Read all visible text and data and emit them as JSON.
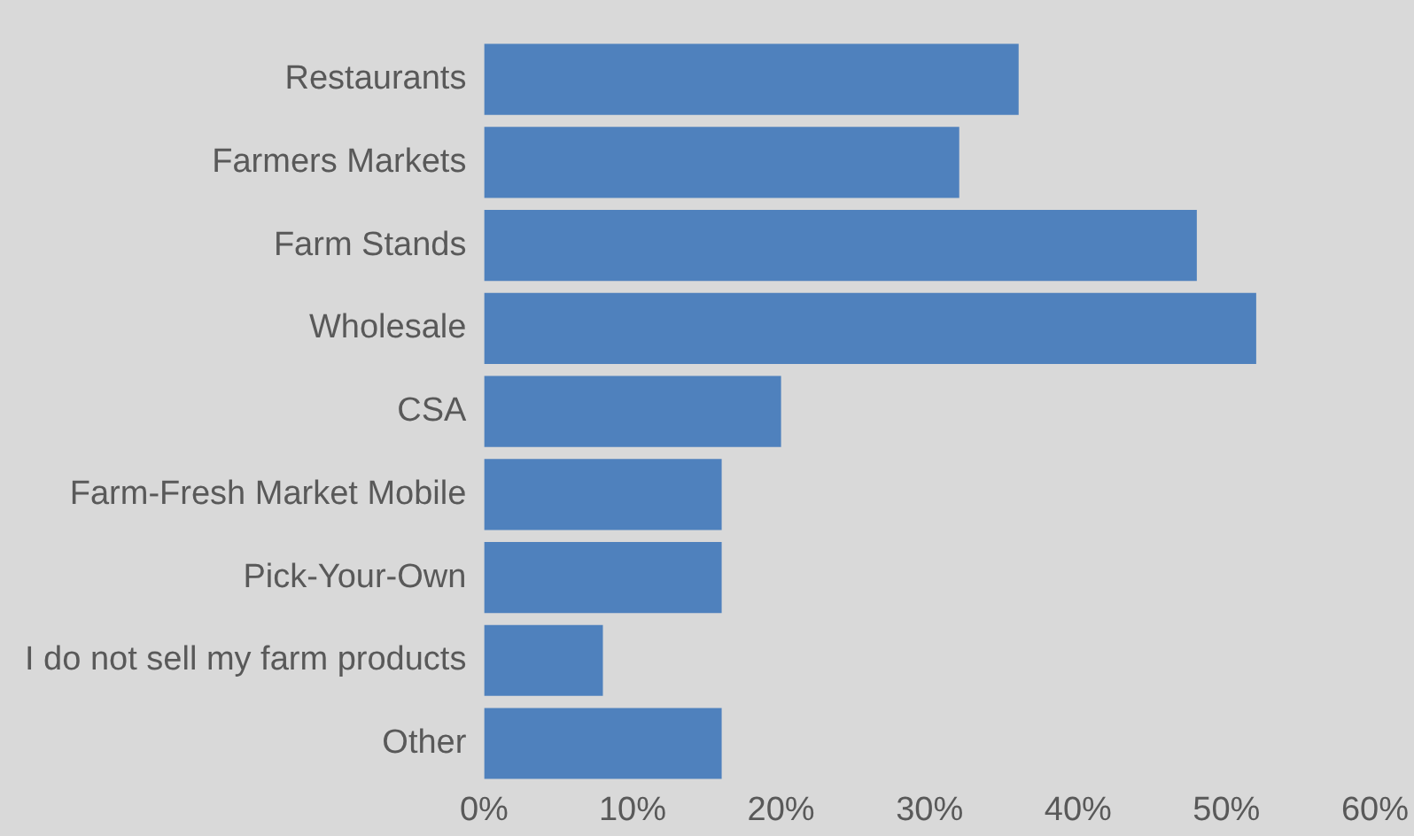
{
  "chart_data": {
    "type": "bar",
    "orientation": "horizontal",
    "categories": [
      "Restaurants",
      "Farmers Markets",
      "Farm Stands",
      "Wholesale",
      "CSA",
      "Farm-Fresh Market Mobile",
      "Pick-Your-Own",
      "I do not sell my farm products",
      "Other"
    ],
    "values": [
      36,
      32,
      48,
      52,
      20,
      16,
      16,
      8,
      16
    ],
    "color": "#4f81bd",
    "xlim": [
      0,
      60
    ],
    "xticks": [
      {
        "value": 0,
        "label": "0%"
      },
      {
        "value": 10,
        "label": "10%"
      },
      {
        "value": 20,
        "label": "20%"
      },
      {
        "value": 30,
        "label": "30%"
      },
      {
        "value": 40,
        "label": "40%"
      },
      {
        "value": 50,
        "label": "50%"
      },
      {
        "value": 60,
        "label": "60%"
      }
    ],
    "grid": false,
    "legend": false
  }
}
